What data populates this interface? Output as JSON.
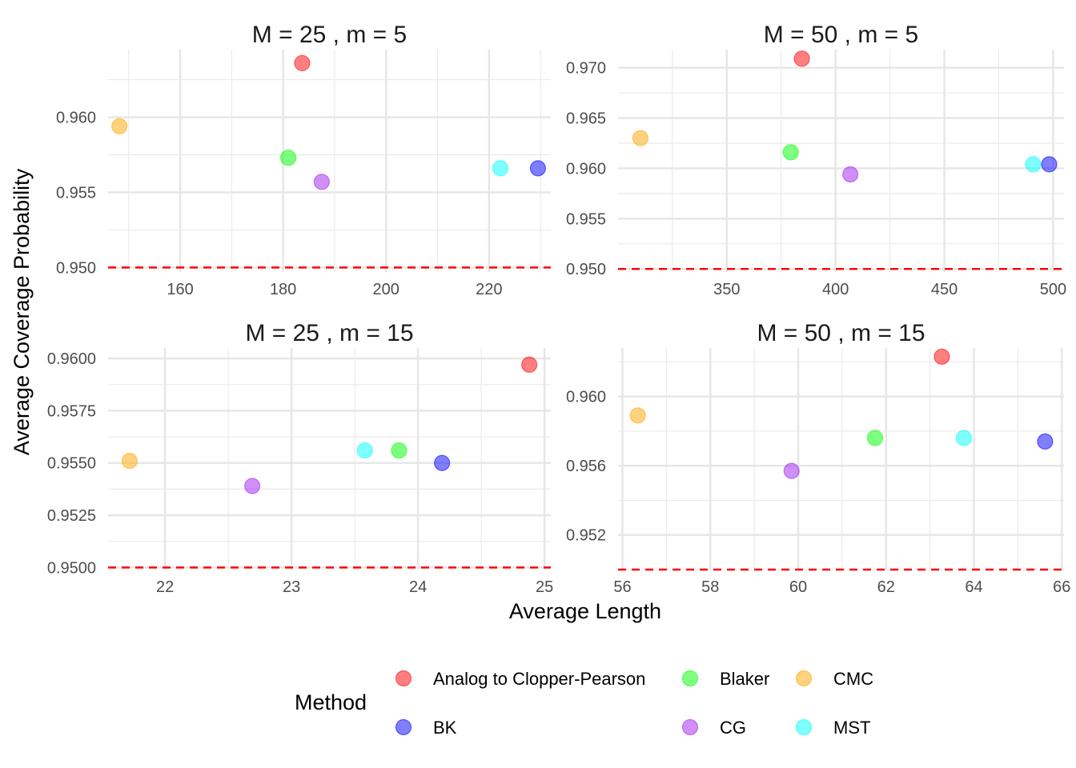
{
  "figure": {
    "xlabel": "Average Length",
    "ylabel": "Average Coverage Probability",
    "legend": {
      "title": "Method",
      "position": "bottom",
      "entries": [
        {
          "name": "Analog to Clopper-Pearson",
          "color": "#FF0000"
        },
        {
          "name": "Blaker",
          "color": "#00FF00"
        },
        {
          "name": "CMC",
          "color": "#FFA500"
        },
        {
          "name": "BK",
          "color": "#0000FF"
        },
        {
          "name": "CG",
          "color": "#A020F0"
        },
        {
          "name": "MST",
          "color": "#00FFFF"
        }
      ]
    },
    "reference_line": {
      "y": 0.95,
      "color": "#FF0000",
      "style": "dashed"
    }
  },
  "chart_data": [
    {
      "type": "scatter",
      "title": "M = 25 , m = 5",
      "xlim": [
        146,
        232
      ],
      "ylim": [
        0.9497,
        0.9645
      ],
      "xticks": [
        160,
        180,
        200,
        220
      ],
      "xtick_labels": [
        "160",
        "180",
        "200",
        "220"
      ],
      "yticks": [
        0.95,
        0.955,
        0.96
      ],
      "ytick_labels": [
        "0.950",
        "0.955",
        "0.960"
      ],
      "grid": true,
      "points": [
        {
          "series": "Analog to Clopper-Pearson",
          "x": 183.7,
          "y": 0.9636
        },
        {
          "series": "CMC",
          "x": 148.2,
          "y": 0.9594
        },
        {
          "series": "Blaker",
          "x": 181.0,
          "y": 0.9573
        },
        {
          "series": "CG",
          "x": 187.5,
          "y": 0.9557
        },
        {
          "series": "MST",
          "x": 222.2,
          "y": 0.9566
        },
        {
          "series": "BK",
          "x": 229.5,
          "y": 0.9566
        }
      ]
    },
    {
      "type": "scatter",
      "title": "M = 50 , m = 5",
      "xlim": [
        300,
        505
      ],
      "ylim": [
        0.9497,
        0.9718
      ],
      "xticks": [
        350,
        400,
        450,
        500
      ],
      "xtick_labels": [
        "350",
        "400",
        "450",
        "500"
      ],
      "yticks": [
        0.95,
        0.955,
        0.96,
        0.965,
        0.97
      ],
      "ytick_labels": [
        "0.950",
        "0.955",
        "0.960",
        "0.965",
        "0.970"
      ],
      "grid": true,
      "points": [
        {
          "series": "Analog to Clopper-Pearson",
          "x": 384.5,
          "y": 0.9709
        },
        {
          "series": "CMC",
          "x": 310.3,
          "y": 0.963
        },
        {
          "series": "Blaker",
          "x": 379.4,
          "y": 0.9616
        },
        {
          "series": "CG",
          "x": 406.8,
          "y": 0.9594
        },
        {
          "series": "MST",
          "x": 490.8,
          "y": 0.9604
        },
        {
          "series": "BK",
          "x": 498.2,
          "y": 0.9604
        }
      ]
    },
    {
      "type": "scatter",
      "title": "M = 25 , m = 15",
      "xlim": [
        21.55,
        25.05
      ],
      "ylim": [
        0.9499,
        0.9605
      ],
      "xticks": [
        22,
        23,
        24,
        25
      ],
      "xtick_labels": [
        "22",
        "23",
        "24",
        "25"
      ],
      "yticks": [
        0.95,
        0.9525,
        0.955,
        0.9575,
        0.96
      ],
      "ytick_labels": [
        "0.9500",
        "0.9525",
        "0.9550",
        "0.9575",
        "0.9600"
      ],
      "grid": true,
      "points": [
        {
          "series": "Analog to Clopper-Pearson",
          "x": 24.88,
          "y": 0.9597
        },
        {
          "series": "CMC",
          "x": 21.72,
          "y": 0.9551
        },
        {
          "series": "CG",
          "x": 22.69,
          "y": 0.9539
        },
        {
          "series": "MST",
          "x": 23.58,
          "y": 0.9556
        },
        {
          "series": "Blaker",
          "x": 23.85,
          "y": 0.9556
        },
        {
          "series": "BK",
          "x": 24.19,
          "y": 0.955
        }
      ]
    },
    {
      "type": "scatter",
      "title": "M = 50 , m = 15",
      "xlim": [
        55.9,
        66.05
      ],
      "ylim": [
        0.95,
        0.9628
      ],
      "xticks": [
        56,
        58,
        60,
        62,
        64,
        66
      ],
      "xtick_labels": [
        "56",
        "58",
        "60",
        "62",
        "64",
        "66"
      ],
      "yticks": [
        0.952,
        0.956,
        0.96
      ],
      "ytick_labels": [
        "0.952",
        "0.956",
        "0.960"
      ],
      "grid": true,
      "points": [
        {
          "series": "Analog to Clopper-Pearson",
          "x": 63.27,
          "y": 0.9623
        },
        {
          "series": "CMC",
          "x": 56.35,
          "y": 0.9589
        },
        {
          "series": "Blaker",
          "x": 61.75,
          "y": 0.9576
        },
        {
          "series": "CG",
          "x": 59.85,
          "y": 0.9557
        },
        {
          "series": "MST",
          "x": 63.77,
          "y": 0.9576
        },
        {
          "series": "BK",
          "x": 65.62,
          "y": 0.9574
        }
      ]
    }
  ]
}
